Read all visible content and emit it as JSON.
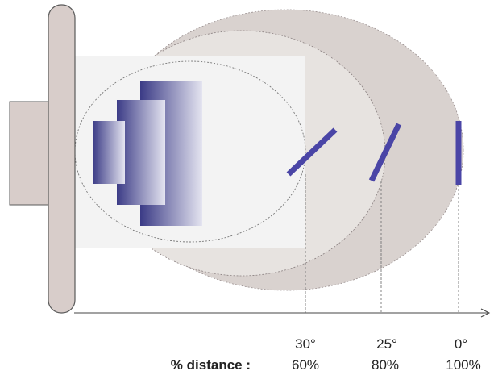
{
  "colors": {
    "background": "#ffffff",
    "lobe_outer": "#d9d2cf",
    "lobe_middle": "#e7e3e0",
    "lamp_area": "#f3f3f3",
    "reflector_plate": "#d8cdca",
    "reflector_edge": "#5a5a5a",
    "lamp_dark": "#3b3b86",
    "lamp_light": "#e4e4f0",
    "target_bar": "#4a45a6",
    "guide_line": "#777777",
    "axis": "#444444"
  },
  "labels": {
    "row_title": "% distance :",
    "positions": [
      {
        "angle": "30°",
        "distance": "60%"
      },
      {
        "angle": "25°",
        "distance": "80%"
      },
      {
        "angle": "0°",
        "distance": "100%"
      }
    ]
  }
}
